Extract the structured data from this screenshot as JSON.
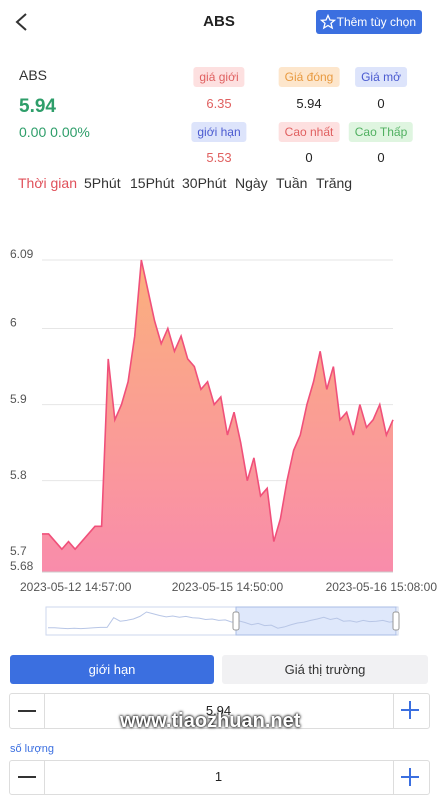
{
  "header": {
    "title": "ABS",
    "action": "Thêm tùy chọn"
  },
  "quote": {
    "symbol": "ABS",
    "price": "5.94",
    "change": "0.00 0.00%",
    "stats": [
      {
        "label": "giá giới",
        "value": "6.35"
      },
      {
        "label": "Giá đóng",
        "value": "5.94"
      },
      {
        "label": "Giá mở",
        "value": "0"
      },
      {
        "label": "giới hạn",
        "value": "5.53"
      },
      {
        "label": "Cao nhất",
        "value": "0"
      },
      {
        "label": "Cao Thấp",
        "value": "0"
      }
    ]
  },
  "periods": [
    "Thời gian",
    "5Phút",
    "15Phút",
    "30Phút",
    "Ngày",
    "Tuần",
    "Trăng"
  ],
  "chart_data": {
    "type": "area",
    "color": "#f0507a",
    "categories": [
      "2023-05-12 14:57:00",
      null,
      null,
      null,
      null,
      null,
      null,
      null,
      null,
      null,
      null,
      null,
      null,
      null,
      null,
      null,
      null,
      null,
      null,
      null,
      null,
      null,
      null,
      null,
      null,
      null,
      null,
      null,
      "2023-05-15 14:50:00",
      null,
      null,
      null,
      null,
      null,
      null,
      null,
      null,
      null,
      null,
      null,
      null,
      null,
      null,
      null,
      null,
      null,
      null,
      null,
      null,
      null,
      null,
      null,
      null,
      "2023-05-16 15:08:00"
    ],
    "values": [
      5.73,
      5.73,
      5.72,
      5.71,
      5.72,
      5.71,
      5.72,
      5.73,
      5.74,
      5.74,
      5.96,
      5.88,
      5.9,
      5.93,
      5.99,
      6.09,
      6.05,
      6.01,
      5.98,
      6.0,
      5.97,
      5.99,
      5.96,
      5.95,
      5.92,
      5.93,
      5.9,
      5.91,
      5.86,
      5.89,
      5.85,
      5.8,
      5.83,
      5.78,
      5.79,
      5.72,
      5.75,
      5.8,
      5.84,
      5.86,
      5.9,
      5.93,
      5.97,
      5.92,
      5.95,
      5.88,
      5.89,
      5.86,
      5.9,
      5.87,
      5.88,
      5.9,
      5.86,
      5.88
    ],
    "ylim": [
      5.68,
      6.09
    ],
    "yticks": [
      5.68,
      5.7,
      5.8,
      5.9,
      6,
      6.09
    ],
    "grid": true
  },
  "order": {
    "tabs": [
      "giới hạn",
      "Giá thị trường"
    ],
    "price": "5.94",
    "quantity_label": "số lượng",
    "quantity": "1"
  },
  "watermark": "www.tiaozhuan.net"
}
